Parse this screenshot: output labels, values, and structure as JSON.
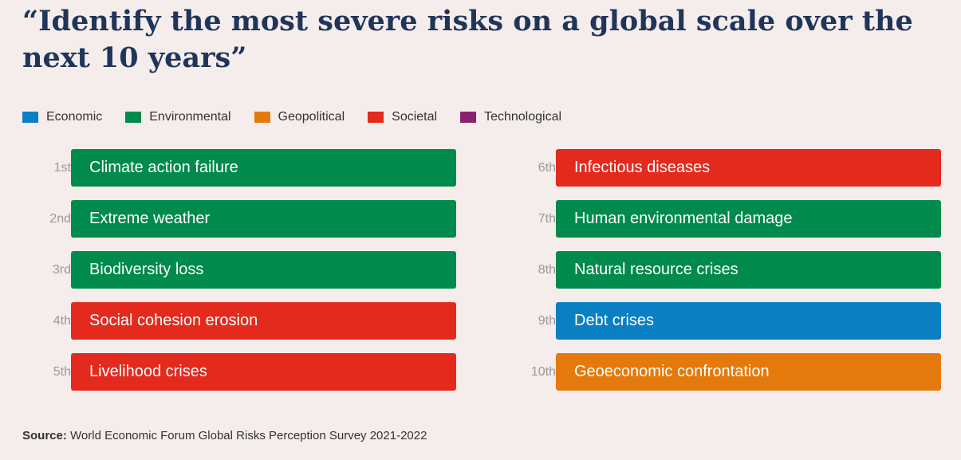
{
  "title": "“Identify the most severe risks on a global scale over the next 10 years”",
  "legend": [
    {
      "label": "Economic",
      "color": "#0a7fc4"
    },
    {
      "label": "Environmental",
      "color": "#008a4b"
    },
    {
      "label": "Geopolitical",
      "color": "#e57a0c"
    },
    {
      "label": "Societal",
      "color": "#e32a1d"
    },
    {
      "label": "Technological",
      "color": "#8b2171"
    }
  ],
  "chart_data": {
    "type": "table",
    "columns": [
      "rank",
      "risk",
      "category"
    ],
    "rows": [
      {
        "rank": "1st",
        "risk": "Climate action failure",
        "category": "Environmental"
      },
      {
        "rank": "2nd",
        "risk": "Extreme weather",
        "category": "Environmental"
      },
      {
        "rank": "3rd",
        "risk": "Biodiversity loss",
        "category": "Environmental"
      },
      {
        "rank": "4th",
        "risk": "Social cohesion erosion",
        "category": "Societal"
      },
      {
        "rank": "5th",
        "risk": "Livelihood crises",
        "category": "Societal"
      },
      {
        "rank": "6th",
        "risk": "Infectious diseases",
        "category": "Societal"
      },
      {
        "rank": "7th",
        "risk": "Human environmental damage",
        "category": "Environmental"
      },
      {
        "rank": "8th",
        "risk": "Natural resource crises",
        "category": "Environmental"
      },
      {
        "rank": "9th",
        "risk": "Debt crises",
        "category": "Economic"
      },
      {
        "rank": "10th",
        "risk": "Geoeconomic confrontation",
        "category": "Geopolitical"
      }
    ]
  },
  "source": {
    "label": "Source:",
    "text": " World Economic Forum Global Risks Perception Survey 2021-2022"
  }
}
